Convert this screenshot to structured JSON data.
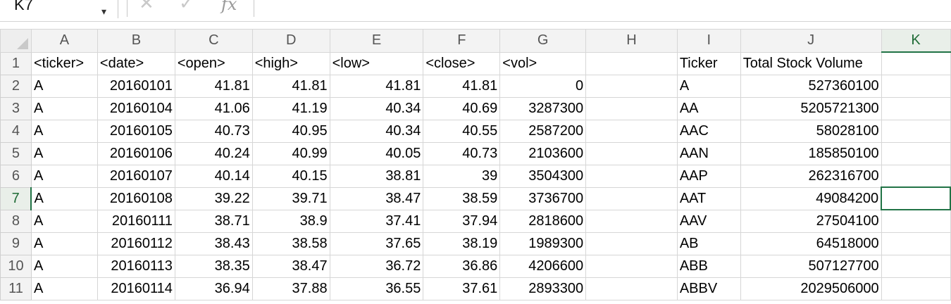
{
  "formula_bar": {
    "name_box": "K7",
    "name_box_arrow": "▾",
    "cancel_icon": "✕",
    "confirm_icon": "✓",
    "fx_label": "fx"
  },
  "columns": [
    "A",
    "B",
    "C",
    "D",
    "E",
    "F",
    "G",
    "H",
    "I",
    "J",
    "K"
  ],
  "active_cell": {
    "column": "K",
    "row": "7"
  },
  "rows": [
    {
      "n": "1",
      "cells": [
        "<ticker>",
        "<date>",
        "<open>",
        "<high>",
        "<low>",
        "<close>",
        "<vol>",
        "",
        "Ticker",
        "Total Stock Volume",
        ""
      ]
    },
    {
      "n": "2",
      "cells": [
        "A",
        "20160101",
        "41.81",
        "41.81",
        "41.81",
        "41.81",
        "0",
        "",
        "A",
        "527360100",
        ""
      ]
    },
    {
      "n": "3",
      "cells": [
        "A",
        "20160104",
        "41.06",
        "41.19",
        "40.34",
        "40.69",
        "3287300",
        "",
        "AA",
        "5205721300",
        ""
      ]
    },
    {
      "n": "4",
      "cells": [
        "A",
        "20160105",
        "40.73",
        "40.95",
        "40.34",
        "40.55",
        "2587200",
        "",
        "AAC",
        "58028100",
        ""
      ]
    },
    {
      "n": "5",
      "cells": [
        "A",
        "20160106",
        "40.24",
        "40.99",
        "40.05",
        "40.73",
        "2103600",
        "",
        "AAN",
        "185850100",
        ""
      ]
    },
    {
      "n": "6",
      "cells": [
        "A",
        "20160107",
        "40.14",
        "40.15",
        "38.81",
        "39",
        "3504300",
        "",
        "AAP",
        "262316700",
        ""
      ]
    },
    {
      "n": "7",
      "cells": [
        "A",
        "20160108",
        "39.22",
        "39.71",
        "38.47",
        "38.59",
        "3736700",
        "",
        "AAT",
        "49084200",
        ""
      ]
    },
    {
      "n": "8",
      "cells": [
        "A",
        "20160111",
        "38.71",
        "38.9",
        "37.41",
        "37.94",
        "2818600",
        "",
        "AAV",
        "27504100",
        ""
      ]
    },
    {
      "n": "9",
      "cells": [
        "A",
        "20160112",
        "38.43",
        "38.58",
        "37.65",
        "38.19",
        "1989300",
        "",
        "AB",
        "64518000",
        ""
      ]
    },
    {
      "n": "10",
      "cells": [
        "A",
        "20160113",
        "38.35",
        "38.47",
        "36.72",
        "36.86",
        "4206600",
        "",
        "ABB",
        "507127700",
        ""
      ]
    },
    {
      "n": "11",
      "cells": [
        "A",
        "20160114",
        "36.94",
        "37.88",
        "36.55",
        "37.61",
        "2893300",
        "",
        "ABBV",
        "2029506000",
        ""
      ]
    }
  ]
}
